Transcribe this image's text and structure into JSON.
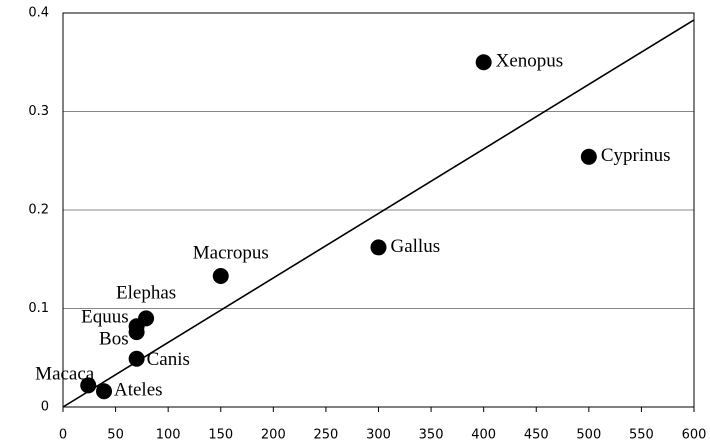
{
  "chart_data": {
    "type": "scatter",
    "series": [
      {
        "color": "#000000",
        "labels": [
          "Xenopus",
          "Cyprinus",
          "Gallus",
          "Macropus",
          "Elephas",
          "Equus",
          "Bos",
          "Canis",
          "Macaca",
          "Ateles"
        ],
        "x": [
          400,
          500,
          300,
          150,
          79,
          70,
          70,
          70,
          24,
          39
        ],
        "values": [
          0.35,
          0.254,
          0.162,
          0.133,
          0.09,
          0.082,
          0.076,
          0.049,
          0.022,
          0.016
        ]
      }
    ],
    "trend_line": {
      "x": [
        0,
        600
      ],
      "values": [
        0,
        0.393
      ]
    },
    "xlim": [
      0,
      600
    ],
    "xticks": [
      0,
      50,
      100,
      150,
      200,
      250,
      300,
      350,
      400,
      450,
      500,
      550,
      600
    ],
    "ylim": [
      0,
      0.4
    ],
    "yticks": [
      0,
      0.1,
      0.2,
      0.3,
      0.4
    ],
    "grid": true
  }
}
